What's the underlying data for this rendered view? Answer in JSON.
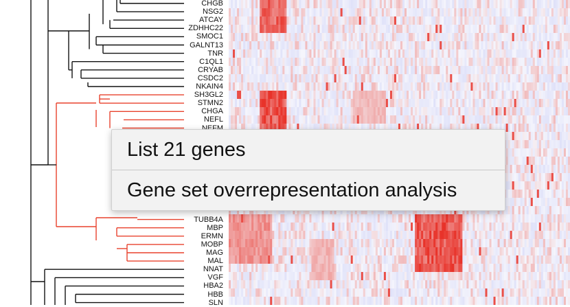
{
  "genes": [
    {
      "name": "CHGB",
      "group": "top"
    },
    {
      "name": "NSG2",
      "group": "top"
    },
    {
      "name": "ATCAY",
      "group": "top"
    },
    {
      "name": "ZDHHC22",
      "group": "top"
    },
    {
      "name": "SMOC1",
      "group": "top"
    },
    {
      "name": "GALNT13",
      "group": "top"
    },
    {
      "name": "TNR",
      "group": "top"
    },
    {
      "name": "C1QL1",
      "group": "top"
    },
    {
      "name": "CRYAB",
      "group": "top"
    },
    {
      "name": "CSDC2",
      "group": "top"
    },
    {
      "name": "NKAIN4",
      "group": "top"
    },
    {
      "name": "SH3GL2",
      "group": "selected"
    },
    {
      "name": "STMN2",
      "group": "selected"
    },
    {
      "name": "CHGA",
      "group": "selected"
    },
    {
      "name": "NEFL",
      "group": "selected"
    },
    {
      "name": "NEFM",
      "group": "selected"
    },
    {
      "name": "TUBB4A",
      "group": "selected"
    },
    {
      "name": "MBP",
      "group": "selected"
    },
    {
      "name": "ERMN",
      "group": "selected"
    },
    {
      "name": "MOBP",
      "group": "selected"
    },
    {
      "name": "MAG",
      "group": "selected"
    },
    {
      "name": "MAL",
      "group": "selected"
    },
    {
      "name": "NNAT",
      "group": "bottom"
    },
    {
      "name": "VGF",
      "group": "bottom"
    },
    {
      "name": "HBA2",
      "group": "bottom"
    },
    {
      "name": "HBB",
      "group": "bottom"
    },
    {
      "name": "SLN",
      "group": "bottom"
    }
  ],
  "context_menu": {
    "items": [
      {
        "label": "List 21 genes"
      },
      {
        "label": "Gene set overrepresentation analysis"
      }
    ]
  },
  "colors": {
    "selected_branch": "#e8412c",
    "branch": "#111111",
    "heat_high": "#e8332a",
    "heat_low": "#c9cdf6"
  }
}
